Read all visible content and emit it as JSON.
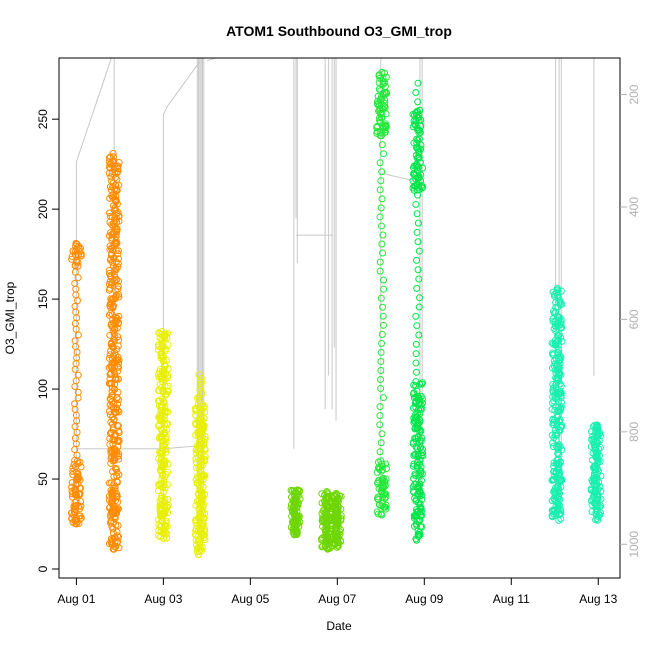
{
  "chart_data": {
    "type": "scatter",
    "title": "ATOM1 Southbound O3_GMI_trop",
    "xlabel": "Date",
    "ylabel": "O3_GMI_trop",
    "x_ticks": [
      "Aug 01",
      "Aug 03",
      "Aug 05",
      "Aug 07",
      "Aug 09",
      "Aug 11",
      "Aug 13"
    ],
    "x_tick_days": [
      1,
      3,
      5,
      7,
      9,
      11,
      13
    ],
    "xlim_days": [
      0.6,
      13.5
    ],
    "y_ticks": [
      0,
      50,
      100,
      150,
      200,
      250
    ],
    "ylim": [
      -5,
      284
    ],
    "y2_ticks": [
      200,
      400,
      600,
      800,
      1000
    ],
    "y2lim": [
      1060,
      135
    ],
    "y2_reversed": true,
    "grid": false,
    "series": [
      {
        "color": "#ff8c00",
        "points": [
          {
            "x": 1.0,
            "ymin": 25,
            "ymax": 181,
            "dense": [
              [
                25,
                62
              ],
              [
                168,
                181
              ]
            ]
          },
          {
            "x": 1.87,
            "ymin": 11,
            "ymax": 231,
            "dense": [
              [
                11,
                231
              ]
            ]
          }
        ]
      },
      {
        "color": "#e8f000",
        "points": [
          {
            "x": 3.0,
            "ymin": 17,
            "ymax": 132,
            "dense": [
              [
                17,
                132
              ]
            ]
          },
          {
            "x": 3.85,
            "ymin": 8,
            "ymax": 108,
            "dense": [
              [
                8,
                95
              ]
            ]
          }
        ]
      },
      {
        "color": "#6ed600",
        "points": [
          {
            "x": 6.05,
            "ymin": 19,
            "ymax": 44,
            "dense": [
              [
                19,
                44
              ]
            ]
          },
          {
            "x": 6.75,
            "ymin": 11,
            "ymax": 43,
            "dense": [
              [
                11,
                43
              ]
            ]
          },
          {
            "x": 6.98,
            "ymin": 12,
            "ymax": 42,
            "dense": [
              [
                12,
                42
              ]
            ]
          }
        ]
      },
      {
        "color": "#22e83a",
        "points": [
          {
            "x": 8.02,
            "ymin": 30,
            "ymax": 276,
            "dense": [
              [
                30,
                60
              ],
              [
                240,
                276
              ]
            ]
          }
        ]
      },
      {
        "color": "#00e64a",
        "points": [
          {
            "x": 8.85,
            "ymin": 16,
            "ymax": 270,
            "dense": [
              [
                16,
                105
              ],
              [
                210,
                255
              ]
            ]
          }
        ]
      },
      {
        "color": "#18efb0",
        "points": [
          {
            "x": 12.05,
            "ymin": 27,
            "ymax": 156,
            "dense": [
              [
                27,
                156
              ]
            ]
          },
          {
            "x": 12.95,
            "ymin": 27,
            "ymax": 80,
            "dense": [
              [
                27,
                80
              ]
            ]
          }
        ]
      }
    ],
    "pressure_trace_color": "#c8c8c8"
  }
}
